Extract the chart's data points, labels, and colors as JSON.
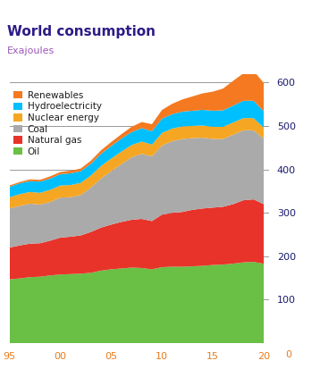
{
  "title": "World consumption",
  "subtitle": "Exajoules",
  "title_color": "#2e1a87",
  "subtitle_color": "#9b59b6",
  "years": [
    1995,
    1996,
    1997,
    1998,
    1999,
    2000,
    2001,
    2002,
    2003,
    2004,
    2005,
    2006,
    2007,
    2008,
    2009,
    2010,
    2011,
    2012,
    2013,
    2014,
    2015,
    2016,
    2017,
    2018,
    2019,
    2020
  ],
  "x_ticks": [
    1995,
    2000,
    2005,
    2010,
    2015,
    2020
  ],
  "x_tick_labels": [
    "95",
    "00",
    "05",
    "10",
    "15",
    "20"
  ],
  "ylim": [
    0,
    620
  ],
  "yticks": [
    100,
    200,
    300,
    400,
    500,
    600
  ],
  "layers": {
    "Oil": {
      "color": "#6abf45",
      "values": [
        147,
        149,
        152,
        153,
        156,
        158,
        159,
        160,
        162,
        167,
        170,
        172,
        174,
        173,
        170,
        175,
        176,
        176,
        177,
        178,
        180,
        181,
        183,
        186,
        187,
        183
      ]
    },
    "Natural gas": {
      "color": "#e8332a",
      "values": [
        73,
        76,
        77,
        77,
        80,
        85,
        86,
        88,
        94,
        99,
        103,
        107,
        110,
        113,
        111,
        121,
        124,
        126,
        130,
        132,
        132,
        133,
        137,
        143,
        144,
        137
      ]
    },
    "Coal": {
      "color": "#aaaaaa",
      "values": [
        90,
        91,
        92,
        89,
        89,
        92,
        91,
        93,
        102,
        113,
        123,
        133,
        144,
        150,
        149,
        159,
        165,
        168,
        165,
        163,
        158,
        156,
        160,
        161,
        159,
        151
      ]
    },
    "Nuclear energy": {
      "color": "#f5a623",
      "values": [
        26,
        27,
        27,
        27,
        28,
        28,
        28,
        28,
        28,
        29,
        29,
        29,
        28,
        28,
        27,
        29,
        29,
        29,
        28,
        28,
        28,
        28,
        28,
        28,
        28,
        25
      ]
    },
    "Hydroelectricity": {
      "color": "#00bfff",
      "values": [
        24,
        25,
        25,
        26,
        26,
        26,
        27,
        27,
        27,
        28,
        29,
        30,
        30,
        31,
        31,
        33,
        33,
        34,
        35,
        36,
        37,
        38,
        39,
        40,
        40,
        38
      ]
    },
    "Renewables": {
      "color": "#f47920",
      "values": [
        3,
        3,
        4,
        4,
        5,
        5,
        6,
        6,
        7,
        8,
        9,
        10,
        12,
        14,
        16,
        20,
        24,
        28,
        33,
        38,
        44,
        50,
        57,
        63,
        69,
        65
      ]
    }
  },
  "layer_order": [
    "Oil",
    "Natural gas",
    "Coal",
    "Nuclear energy",
    "Hydroelectricity",
    "Renewables"
  ],
  "legend_order": [
    "Renewables",
    "Hydroelectricity",
    "Nuclear energy",
    "Coal",
    "Natural gas",
    "Oil"
  ],
  "background_color": "#ffffff",
  "grid_color": "#888888",
  "tick_label_color": "#e87c1e",
  "y_tick_label_color": "#1a1a6e",
  "title_fontsize": 11,
  "subtitle_fontsize": 8,
  "legend_fontsize": 7.5,
  "axis_fontsize": 8
}
